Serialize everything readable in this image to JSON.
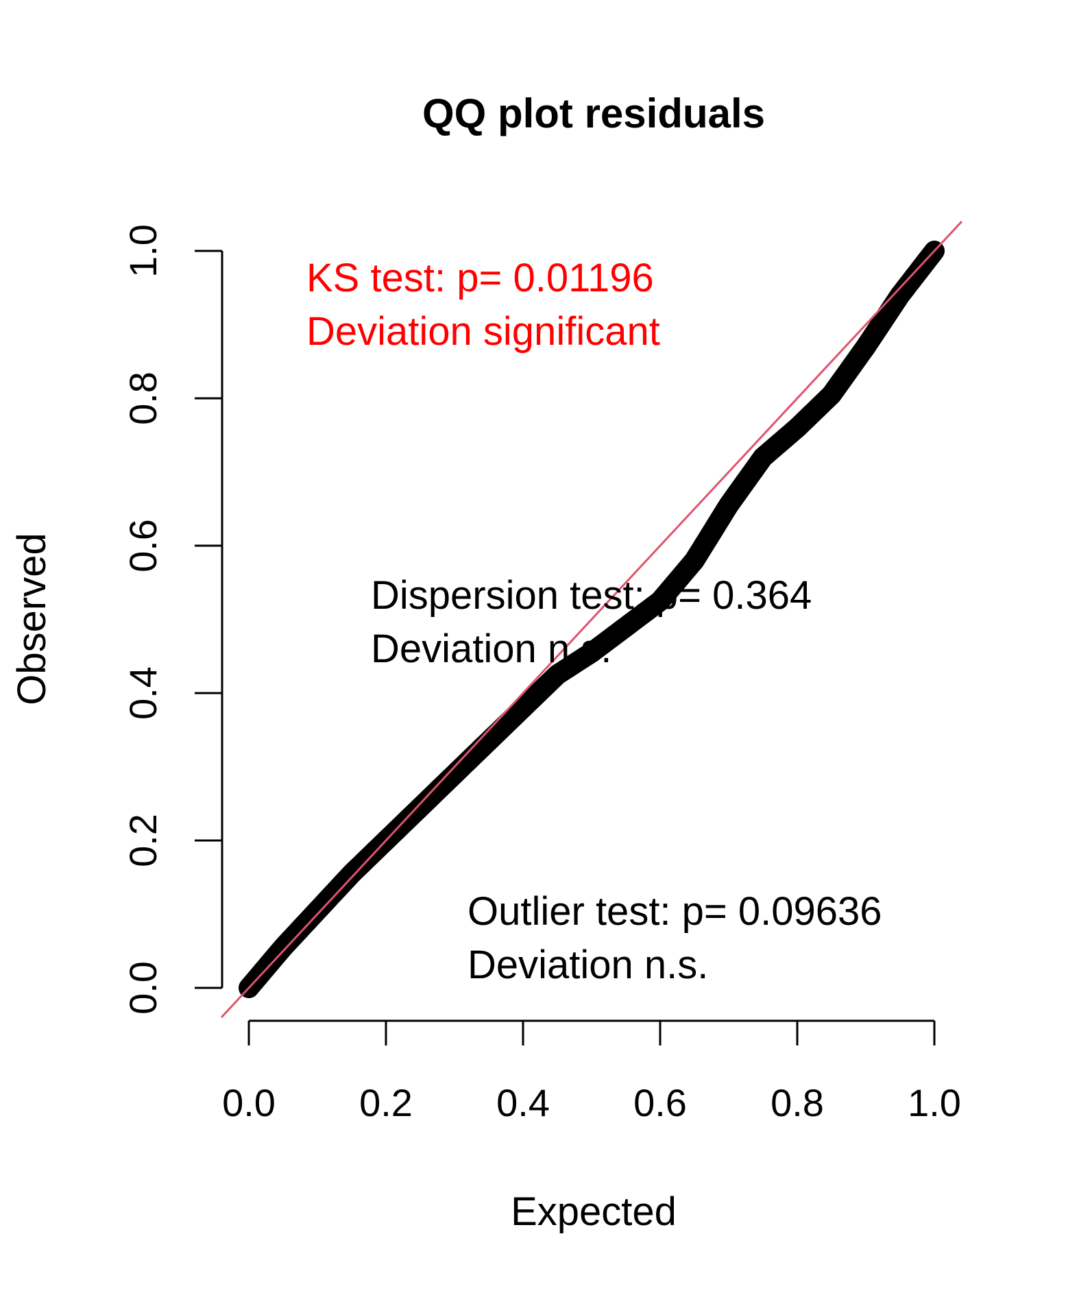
{
  "chart_data": {
    "type": "scatter",
    "title": "QQ plot residuals",
    "xlabel": "Expected",
    "ylabel": "Observed",
    "xlim": [
      -0.04,
      1.04
    ],
    "ylim": [
      -0.04,
      1.04
    ],
    "x_ticks": [
      "0.0",
      "0.2",
      "0.4",
      "0.6",
      "0.8",
      "1.0"
    ],
    "y_ticks": [
      "0.0",
      "0.2",
      "0.4",
      "0.6",
      "0.8",
      "1.0"
    ],
    "grid": false,
    "series": [
      {
        "values_description_free": true,
        "points": [
          [
            0.0,
            0.0
          ],
          [
            0.05,
            0.055
          ],
          [
            0.1,
            0.105
          ],
          [
            0.15,
            0.155
          ],
          [
            0.2,
            0.2
          ],
          [
            0.25,
            0.245
          ],
          [
            0.3,
            0.29
          ],
          [
            0.35,
            0.335
          ],
          [
            0.4,
            0.38
          ],
          [
            0.45,
            0.425
          ],
          [
            0.5,
            0.455
          ],
          [
            0.55,
            0.49
          ],
          [
            0.6,
            0.525
          ],
          [
            0.65,
            0.58
          ],
          [
            0.7,
            0.655
          ],
          [
            0.75,
            0.72
          ],
          [
            0.8,
            0.76
          ],
          [
            0.85,
            0.805
          ],
          [
            0.9,
            0.87
          ],
          [
            0.95,
            0.94
          ],
          [
            1.0,
            1.0
          ]
        ],
        "color": "#000000"
      }
    ],
    "reference_line": {
      "from": [
        -0.04,
        -0.04
      ],
      "to": [
        1.04,
        1.04
      ],
      "color": "#DF536B"
    },
    "annotations": [
      {
        "lines": [
          "KS test: p= 0.01196",
          "Deviation  significant"
        ],
        "color": "#FF0000"
      },
      {
        "lines": [
          "Dispersion test: p= 0.364",
          "Deviation  n.s."
        ],
        "color": "#000000"
      },
      {
        "lines": [
          "Outlier test: p= 0.09636",
          "Deviation  n.s."
        ],
        "color": "#000000"
      }
    ]
  }
}
